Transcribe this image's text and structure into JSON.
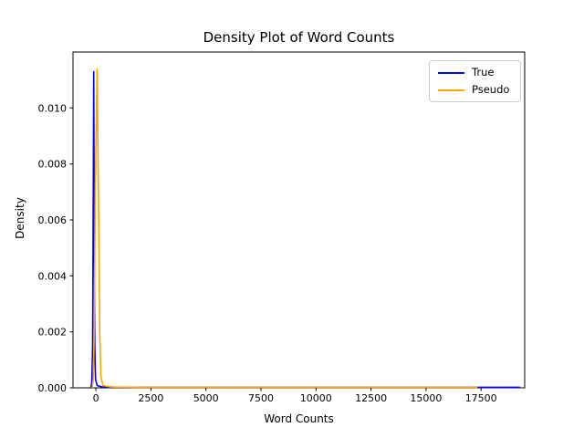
{
  "figure": {
    "background": "#ffffff"
  },
  "chart_data": {
    "type": "line",
    "subtype": "kde-density",
    "title": "Density Plot of Word Counts",
    "xlabel": "Word Counts",
    "ylabel": "Density",
    "xlim": [
      -1040,
      19480
    ],
    "ylim": [
      0,
      0.012
    ],
    "xticks": [
      0,
      2500,
      5000,
      7500,
      10000,
      12500,
      15000,
      17500
    ],
    "yticks": [
      0,
      0.002,
      0.004,
      0.006,
      0.008,
      0.01
    ],
    "ytick_labels": [
      "0.000",
      "0.002",
      "0.004",
      "0.006",
      "0.008",
      "0.010"
    ],
    "grid": false,
    "legend": {
      "position": "upper right",
      "entries": [
        {
          "label": "True",
          "color": "#0000ff"
        },
        {
          "label": "Pseudo",
          "color": "#ffa500"
        }
      ]
    },
    "series": [
      {
        "name": "True",
        "color": "#0000ff",
        "peak": {
          "x": -100,
          "density": 0.0113
        },
        "support": [
          -230,
          19270
        ],
        "points": [
          [
            -230,
            0.0
          ],
          [
            -185,
            0.0002
          ],
          [
            -150,
            0.0015
          ],
          [
            -125,
            0.006
          ],
          [
            -100,
            0.0113
          ],
          [
            -75,
            0.006
          ],
          [
            -50,
            0.0015
          ],
          [
            -15,
            0.0003
          ],
          [
            60,
            8e-05
          ],
          [
            300,
            3e-05
          ],
          [
            1000,
            2e-05
          ],
          [
            3000,
            2e-05
          ],
          [
            6000,
            2e-05
          ],
          [
            9000,
            2e-05
          ],
          [
            12000,
            2e-05
          ],
          [
            15000,
            2e-05
          ],
          [
            17500,
            2e-05
          ],
          [
            19270,
            2e-05
          ]
        ]
      },
      {
        "name": "Pseudo",
        "color": "#ffa500",
        "peak": {
          "x": 55,
          "density": 0.0114
        },
        "support": [
          -170,
          17330
        ],
        "points": [
          [
            -170,
            0.0
          ],
          [
            -120,
            0.0003
          ],
          [
            -75,
            0.002
          ],
          [
            -30,
            0.007
          ],
          [
            55,
            0.0114
          ],
          [
            130,
            0.006
          ],
          [
            175,
            0.002
          ],
          [
            230,
            0.0004
          ],
          [
            320,
            8e-05
          ],
          [
            700,
            3e-05
          ],
          [
            2000,
            2e-05
          ],
          [
            5000,
            2e-05
          ],
          [
            8000,
            2e-05
          ],
          [
            11000,
            2e-05
          ],
          [
            14000,
            2e-05
          ],
          [
            17330,
            2e-05
          ]
        ]
      }
    ]
  }
}
